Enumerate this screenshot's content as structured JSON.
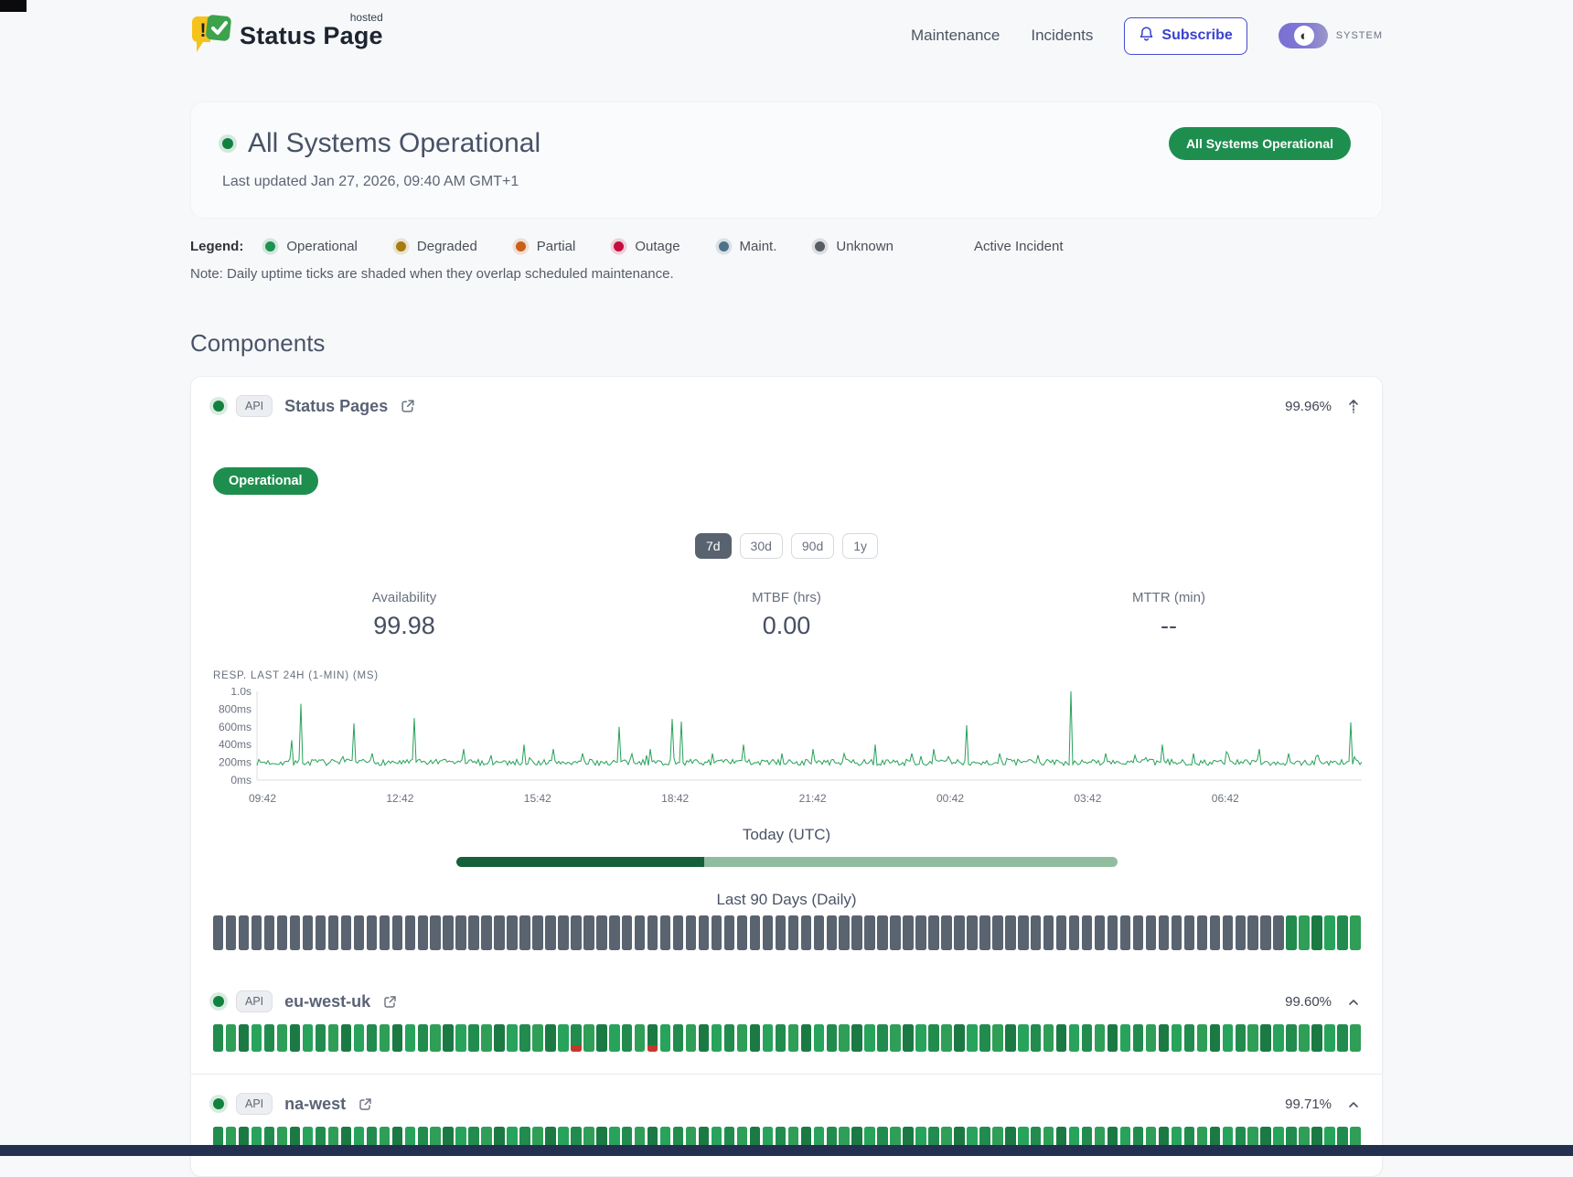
{
  "header": {
    "logo_title": "Status Page",
    "logo_superscript": "hosted",
    "nav": [
      {
        "label": "Maintenance"
      },
      {
        "label": "Incidents"
      }
    ],
    "subscribe_label": "Subscribe",
    "theme_label": "SYSTEM"
  },
  "hero": {
    "title": "All Systems Operational",
    "last_updated": "Last updated Jan 27, 2026, 09:40 AM GMT+1",
    "badge_label": "All Systems Operational"
  },
  "legend": {
    "label": "Legend:",
    "items": [
      {
        "label": "Operational",
        "color": "#1d9150"
      },
      {
        "label": "Degraded",
        "color": "#a87b0e"
      },
      {
        "label": "Partial",
        "color": "#cc5f17"
      },
      {
        "label": "Outage",
        "color": "#c40e3e"
      },
      {
        "label": "Maint.",
        "color": "#4e7389"
      },
      {
        "label": "Unknown",
        "color": "#575d63"
      }
    ],
    "active_incident_label": "Active Incident",
    "note": "Note: Daily uptime ticks are shaded when they overlap scheduled maintenance."
  },
  "components": {
    "heading": "Components",
    "items": [
      {
        "badge": "API",
        "name": "Status Pages",
        "uptime": "99.96%",
        "status_label": "Operational",
        "ranges": [
          "7d",
          "30d",
          "90d",
          "1y"
        ],
        "active_range": "7d",
        "stats": [
          {
            "label": "Availability",
            "value": "99.98"
          },
          {
            "label": "MTBF (hrs)",
            "value": "0.00"
          },
          {
            "label": "MTTR (min)",
            "value": "--"
          }
        ],
        "today_label": "Today (UTC)",
        "today_progress": 0.376,
        "ninety_label": "Last 90 Days (Daily)",
        "ninety_segments": [
          {
            "status": "unknown",
            "count": 84
          },
          {
            "status": "operational",
            "count": 6
          }
        ]
      },
      {
        "badge": "API",
        "name": "eu-west-uk",
        "uptime": "99.60%",
        "ninety_segments": [
          {
            "status": "operational",
            "count": 28
          },
          {
            "status": "partial_edge",
            "count": 1
          },
          {
            "status": "operational",
            "count": 5
          },
          {
            "status": "partial_edge",
            "count": 1
          },
          {
            "status": "operational",
            "count": 55
          }
        ]
      },
      {
        "badge": "API",
        "name": "na-west",
        "uptime": "99.71%",
        "ninety_segments": [
          {
            "status": "operational",
            "count": 27
          },
          {
            "status": "partial_edge",
            "count": 1
          },
          {
            "status": "operational",
            "count": 62
          }
        ]
      }
    ]
  },
  "chart_data": {
    "type": "line",
    "title": "RESP. LAST 24H (1-MIN) (MS)",
    "x_tick_labels": [
      "09:42",
      "12:42",
      "15:42",
      "18:42",
      "21:42",
      "00:42",
      "03:42",
      "06:42"
    ],
    "y_tick_labels": [
      "1.0s",
      "800ms",
      "600ms",
      "400ms",
      "200ms",
      "0ms"
    ],
    "ylim_ms": [
      0,
      1000
    ],
    "baseline_ms": 200,
    "line_color": "#27a15a",
    "spikes": [
      {
        "x": 0.031,
        "ms": 450
      },
      {
        "x": 0.039,
        "ms": 860
      },
      {
        "x": 0.087,
        "ms": 640
      },
      {
        "x": 0.104,
        "ms": 300
      },
      {
        "x": 0.142,
        "ms": 700
      },
      {
        "x": 0.187,
        "ms": 350
      },
      {
        "x": 0.212,
        "ms": 280
      },
      {
        "x": 0.242,
        "ms": 400
      },
      {
        "x": 0.269,
        "ms": 350
      },
      {
        "x": 0.295,
        "ms": 300
      },
      {
        "x": 0.328,
        "ms": 600
      },
      {
        "x": 0.356,
        "ms": 350
      },
      {
        "x": 0.376,
        "ms": 690
      },
      {
        "x": 0.384,
        "ms": 660
      },
      {
        "x": 0.413,
        "ms": 300
      },
      {
        "x": 0.441,
        "ms": 400
      },
      {
        "x": 0.475,
        "ms": 300
      },
      {
        "x": 0.503,
        "ms": 350
      },
      {
        "x": 0.531,
        "ms": 300
      },
      {
        "x": 0.559,
        "ms": 400
      },
      {
        "x": 0.593,
        "ms": 300
      },
      {
        "x": 0.612,
        "ms": 350
      },
      {
        "x": 0.643,
        "ms": 620
      },
      {
        "x": 0.672,
        "ms": 300
      },
      {
        "x": 0.707,
        "ms": 280
      },
      {
        "x": 0.737,
        "ms": 1000
      },
      {
        "x": 0.768,
        "ms": 300
      },
      {
        "x": 0.794,
        "ms": 280
      },
      {
        "x": 0.819,
        "ms": 400
      },
      {
        "x": 0.847,
        "ms": 300
      },
      {
        "x": 0.877,
        "ms": 320
      },
      {
        "x": 0.908,
        "ms": 350
      },
      {
        "x": 0.934,
        "ms": 300
      },
      {
        "x": 0.96,
        "ms": 280
      },
      {
        "x": 0.99,
        "ms": 650
      }
    ]
  },
  "colors": {
    "page_bg": "#f7f8fa",
    "green": "#1e8e4e",
    "accent_indigo": "#444cd1",
    "toggle_purple": "#7b6fd3",
    "tick_unknown": "#5a6370",
    "tick_greens": [
      "#218c4e",
      "#27a35b",
      "#1b7a43",
      "#2f9e57"
    ],
    "partial_red": "#c4372a",
    "progress_dark": "#15603a",
    "progress_light": "#8fbd9e",
    "footer_strip": "#233050",
    "axis_line": "#d9dde3"
  }
}
